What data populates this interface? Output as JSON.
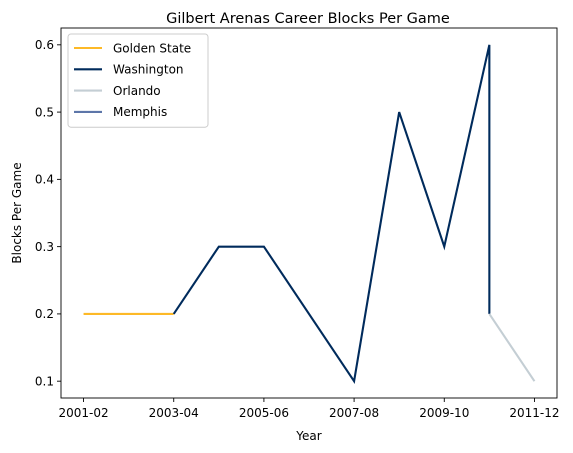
{
  "chart_data": {
    "type": "line",
    "title": "Gilbert Arenas Career Blocks Per Game",
    "xlabel": "Year",
    "ylabel": "Blocks Per Game",
    "x_ticks": [
      "2001-02",
      "2003-04",
      "2005-06",
      "2007-08",
      "2009-10",
      "2011-12"
    ],
    "y_ticks": [
      "0.1",
      "0.2",
      "0.3",
      "0.4",
      "0.5",
      "0.6"
    ],
    "ylim": [
      0.075,
      0.625
    ],
    "grid": false,
    "legend_position": "top-left",
    "series": [
      {
        "name": "Golden State",
        "color": "#FDB927",
        "points": [
          [
            "2001-02",
            0.2
          ],
          [
            "2002-03",
            0.2
          ],
          [
            "2003-04",
            0.2
          ]
        ]
      },
      {
        "name": "Washington",
        "color": "#002B5C",
        "points": [
          [
            "2003-04",
            0.2
          ],
          [
            "2004-05",
            0.3
          ],
          [
            "2005-06",
            0.3
          ],
          [
            "2007-08",
            0.1
          ],
          [
            "2008-09",
            0.5
          ],
          [
            "2009-10",
            0.3
          ],
          [
            "2010-11",
            0.6
          ],
          [
            "2010-11",
            0.2
          ]
        ]
      },
      {
        "name": "Orlando",
        "color": "#C4CED4",
        "points": [
          [
            "2010-11",
            0.2
          ],
          [
            "2011-12",
            0.1
          ]
        ]
      },
      {
        "name": "Memphis",
        "color": "#5D76A9",
        "points": []
      }
    ]
  }
}
